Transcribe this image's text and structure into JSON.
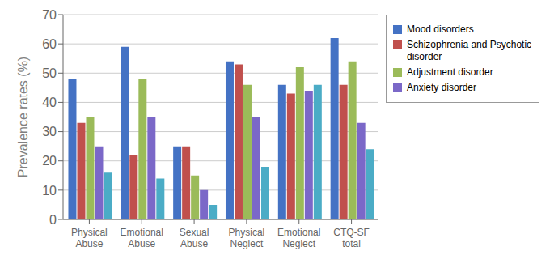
{
  "chart_data": {
    "type": "bar",
    "categories": [
      "Physical\nAbuse",
      "Emotional\nAbuse",
      "Sexual\nAbuse",
      "Physical\nNeglect",
      "Emotional\nNeglect",
      "CTQ-SF\ntotal"
    ],
    "series": [
      {
        "name": "Mood disorders",
        "color": "#4472C4",
        "values": [
          48,
          59,
          25,
          54,
          46,
          62
        ]
      },
      {
        "name": "Schizophrenia and Psychotic\ndisorder",
        "color": "#C0504D",
        "values": [
          33,
          22,
          25,
          53,
          43,
          46
        ]
      },
      {
        "name": "Adjustment disorder",
        "color": "#9BBB59",
        "values": [
          35,
          48,
          15,
          46,
          52,
          54
        ]
      },
      {
        "name": "Anxiety disorder",
        "color": "#7B68C8",
        "values": [
          25,
          35,
          10,
          35,
          44,
          33
        ]
      },
      {
        "color": "#4BACC6",
        "values": [
          16,
          14,
          5,
          18,
          46,
          24
        ]
      }
    ],
    "ylabel": "Prevalence rates (%)",
    "ylim": [
      0,
      70
    ],
    "yticks": [
      0,
      10,
      20,
      30,
      40,
      50,
      60,
      70
    ],
    "grid": true,
    "legend": "upper right"
  }
}
